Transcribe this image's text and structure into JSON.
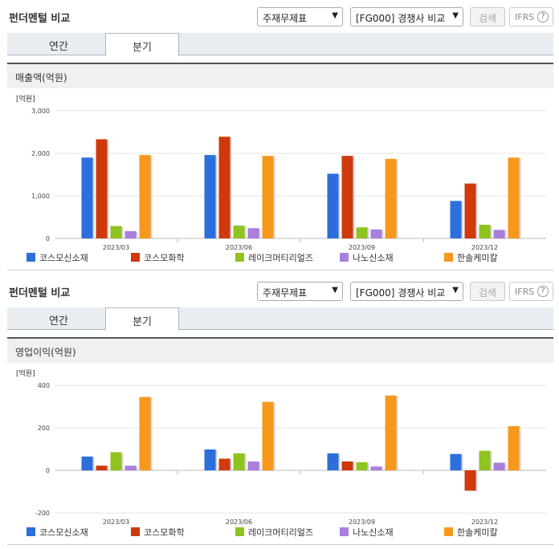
{
  "sections": [
    {
      "title": "펀더멘털 비교",
      "select1": "주재무제표",
      "select2": "[FG000] 경쟁사 비교",
      "search_label": "검색",
      "ifrs_label": "IFRS",
      "ifrs_help": "?",
      "tabs": [
        "연간",
        "분기"
      ],
      "active_tab": 1,
      "metric_label": "매출액(억원)"
    },
    {
      "title": "펀더멘털 비교",
      "select1": "주재무제표",
      "select2": "[FG000] 경쟁사 비교",
      "search_label": "검색",
      "ifrs_label": "IFRS",
      "ifrs_help": "?",
      "tabs": [
        "연간",
        "분기"
      ],
      "active_tab": 1,
      "metric_label": "영업이익(억원)"
    }
  ],
  "colors": {
    "accent_title": "#333333",
    "series": [
      "#2a6fdb",
      "#d0390c",
      "#8fc31f",
      "#a97fde",
      "#f7981d"
    ]
  },
  "chart_data": [
    {
      "type": "bar",
      "unit_label": "[억원]",
      "categories": [
        "2023/03",
        "2023/06",
        "2023/09",
        "2023/12"
      ],
      "ylim": [
        0,
        3000
      ],
      "yticks": [
        0,
        1000,
        2000,
        3000
      ],
      "ytick_labels": [
        "0",
        "1,000",
        "2,000",
        "3,000"
      ],
      "grid": true,
      "legend_position": "bottom",
      "series": [
        {
          "name": "코스모신소재",
          "values": [
            1900,
            1960,
            1520,
            880
          ]
        },
        {
          "name": "코스모화학",
          "values": [
            2330,
            2390,
            1940,
            1290
          ]
        },
        {
          "name": "레이크머티리얼즈",
          "values": [
            290,
            300,
            260,
            320
          ]
        },
        {
          "name": "나노신소재",
          "values": [
            170,
            240,
            210,
            200
          ]
        },
        {
          "name": "한솔케미칼",
          "values": [
            1960,
            1940,
            1870,
            1900
          ]
        }
      ]
    },
    {
      "type": "bar",
      "unit_label": "[억원]",
      "categories": [
        "2023/03",
        "2023/06",
        "2023/09",
        "2023/12"
      ],
      "ylim": [
        -200,
        400
      ],
      "yticks": [
        -200,
        0,
        200,
        400
      ],
      "ytick_labels": [
        "-200",
        "0",
        "200",
        "400"
      ],
      "grid": true,
      "legend_position": "bottom",
      "series": [
        {
          "name": "코스모신소재",
          "values": [
            65,
            98,
            80,
            77
          ]
        },
        {
          "name": "코스모화학",
          "values": [
            22,
            55,
            42,
            -95
          ]
        },
        {
          "name": "레이크머티리얼즈",
          "values": [
            85,
            80,
            38,
            92
          ]
        },
        {
          "name": "나노신소재",
          "values": [
            22,
            42,
            18,
            36
          ]
        },
        {
          "name": "한솔케미칼",
          "values": [
            345,
            322,
            352,
            208
          ]
        }
      ]
    }
  ]
}
